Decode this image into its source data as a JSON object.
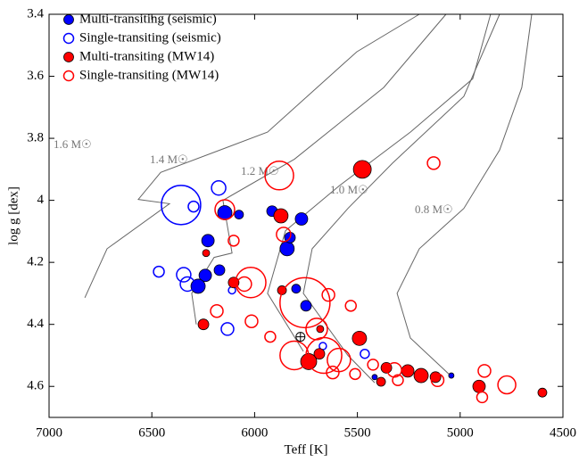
{
  "chart_data": {
    "type": "scatter",
    "xlabel": "Teff [K]",
    "ylabel": "log g [dex]",
    "xlim": [
      7000,
      4500
    ],
    "ylim": [
      3.4,
      4.7
    ],
    "xticks": [
      7000,
      6500,
      6000,
      5500,
      5000,
      4500
    ],
    "yticks": [
      3.4,
      3.6,
      3.8,
      4,
      4.2,
      4.4,
      4.6
    ],
    "legend": "upper left",
    "series": [
      {
        "name": "Multi-transiting (seismic)",
        "color": "#0000ff",
        "filled": true,
        "x": [
          6145,
          6076,
          6227,
          6171,
          6240,
          6275,
          5915,
          5842,
          5828,
          5772,
          5798,
          5750,
          5043,
          5416
        ],
        "values": [
          4.04,
          4.046,
          4.13,
          4.225,
          4.242,
          4.277,
          4.035,
          4.156,
          4.12,
          4.06,
          4.285,
          4.34,
          4.565,
          4.57
        ],
        "sizes": [
          8,
          5,
          7,
          6,
          7,
          8,
          6,
          8,
          6,
          7,
          5,
          6,
          3,
          3
        ]
      },
      {
        "name": "Single-transiting (seismic)",
        "color": "#0000ff",
        "filled": false,
        "x": [
          6358,
          6175,
          6297,
          6466,
          6345,
          6327,
          6110,
          6132,
          5464,
          5668
        ],
        "values": [
          4.015,
          3.96,
          4.02,
          4.23,
          4.24,
          4.27,
          4.29,
          4.415,
          4.495,
          4.47
        ],
        "sizes": [
          22,
          8,
          6,
          6,
          8,
          8,
          4,
          7,
          5,
          4
        ]
      },
      {
        "name": "Multi-transiting (MW14)",
        "color": "#ff0000",
        "filled": true,
        "x": [
          5476,
          5872,
          6236,
          6102,
          5867,
          6249,
          5490,
          5685,
          5737,
          5681,
          5359,
          5255,
          5190,
          5120,
          5385,
          4908,
          4600
        ],
        "values": [
          3.9,
          4.05,
          4.17,
          4.265,
          4.29,
          4.4,
          4.445,
          4.495,
          4.52,
          4.415,
          4.54,
          4.55,
          4.565,
          4.57,
          4.585,
          4.6,
          4.62
        ],
        "sizes": [
          10,
          8,
          4,
          6,
          5,
          6,
          8,
          6,
          9,
          4,
          6,
          7,
          8,
          6,
          5,
          7,
          5
        ]
      },
      {
        "name": "Single-transiting (MW14)",
        "color": "#ff0000",
        "filled": false,
        "x": [
          5880,
          5129,
          6145,
          6102,
          5859,
          6019,
          6050,
          5755,
          5641,
          6184,
          6015,
          5924,
          5698,
          5807,
          5663,
          5590,
          5532,
          5511,
          5424,
          5320,
          5303,
          5110,
          4882,
          4773,
          4893,
          5620
        ],
        "values": [
          3.92,
          3.88,
          4.03,
          4.13,
          4.11,
          4.265,
          4.27,
          4.33,
          4.305,
          4.357,
          4.39,
          4.44,
          4.415,
          4.5,
          4.5,
          4.515,
          4.34,
          4.56,
          4.53,
          4.547,
          4.58,
          4.58,
          4.55,
          4.595,
          4.635,
          4.555
        ],
        "sizes": [
          16,
          7,
          11,
          6,
          8,
          17,
          8,
          28,
          7,
          7,
          7,
          6,
          12,
          16,
          20,
          13,
          6,
          6,
          6,
          8,
          6,
          7,
          7,
          10,
          6,
          7
        ]
      }
    ],
    "tracks": [
      {
        "label": "1.6 M☉",
        "x": [
          6826,
          6718,
          6414,
          6566,
          6457,
          5937,
          5503,
          5199
        ],
        "y": [
          4.314,
          4.156,
          4.011,
          3.997,
          3.91,
          3.78,
          3.521,
          3.4
        ]
      },
      {
        "label": "1.4 M☉",
        "x": [
          6284,
          6306,
          6197,
          6110,
          6154,
          5806,
          5372,
          5069
        ],
        "y": [
          4.4,
          4.3,
          4.184,
          4.17,
          4.0,
          3.867,
          3.636,
          3.4
        ]
      },
      {
        "label": "1.2 M☉",
        "x": [
          5763,
          5937,
          5850,
          5590,
          5242,
          4939,
          4852
        ],
        "y": [
          4.487,
          4.3,
          4.098,
          3.954,
          3.78,
          3.608,
          3.4
        ]
      },
      {
        "label": "1.0 M☉",
        "x": [
          5416,
          5546,
          5763,
          5720,
          5546,
          5329,
          4982,
          4808
        ],
        "y": [
          4.588,
          4.5,
          4.3,
          4.156,
          4.026,
          3.88,
          3.665,
          3.4
        ]
      },
      {
        "label": "0.8 M☉",
        "x": [
          5047,
          5242,
          5307,
          5199,
          4982,
          4808,
          4700,
          4652
        ],
        "y": [
          4.565,
          4.444,
          4.3,
          4.156,
          4.026,
          3.838,
          3.636,
          3.4
        ]
      }
    ],
    "sun": {
      "x": 5777,
      "y": 4.44
    }
  }
}
